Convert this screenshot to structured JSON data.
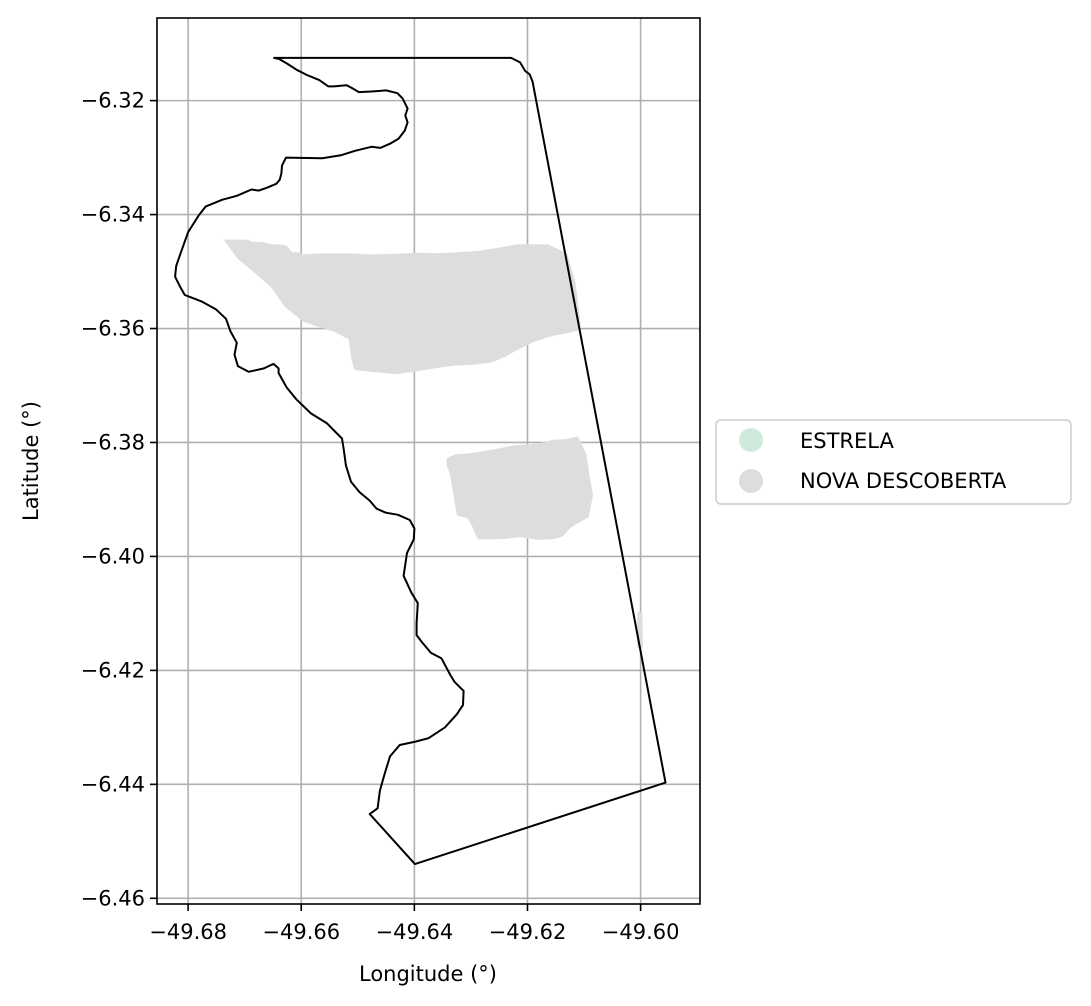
{
  "chart_data": {
    "type": "map",
    "xlabel": "Longitude (°)",
    "ylabel": "Latitude (°)",
    "xlim": [
      -49.6855,
      -49.5895
    ],
    "ylim": [
      -6.461,
      -6.3055
    ],
    "grid": true,
    "x_ticks": [
      -49.68,
      -49.66,
      -49.64,
      -49.62,
      -49.6
    ],
    "y_ticks": [
      -6.32,
      -6.34,
      -6.36,
      -6.38,
      -6.4,
      -6.42,
      -6.44,
      -6.46
    ],
    "x_tick_labels": [
      "−49.68",
      "−49.66",
      "−49.64",
      "−49.62",
      "−49.60"
    ],
    "y_tick_labels": [
      "−6.32",
      "−6.34",
      "−6.36",
      "−6.38",
      "−6.40",
      "−6.42",
      "−6.44",
      "−6.46"
    ],
    "legend": {
      "placement": "right-center",
      "entries": [
        {
          "label": "ESTRELA",
          "color": "#cfeadd"
        },
        {
          "label": "NOVA DESCOBERTA",
          "color": "#dddddd"
        }
      ]
    },
    "boundary": [
      [
        -49.6229,
        -6.3125
      ],
      [
        -49.6213,
        -6.3133
      ],
      [
        -49.6204,
        -6.3148
      ],
      [
        -49.6196,
        -6.3154
      ],
      [
        -49.6191,
        -6.3167
      ],
      [
        -49.5956,
        -6.4397
      ],
      [
        -49.6399,
        -6.454
      ],
      [
        -49.6479,
        -6.4452
      ],
      [
        -49.6465,
        -6.4442
      ],
      [
        -49.6461,
        -6.4411
      ],
      [
        -49.6453,
        -6.4383
      ],
      [
        -49.6443,
        -6.4351
      ],
      [
        -49.6426,
        -6.4331
      ],
      [
        -49.6398,
        -6.4325
      ],
      [
        -49.6375,
        -6.4319
      ],
      [
        -49.6346,
        -6.43
      ],
      [
        -49.6325,
        -6.4277
      ],
      [
        -49.6314,
        -6.4261
      ],
      [
        -49.6313,
        -6.4236
      ],
      [
        -49.6329,
        -6.422
      ],
      [
        -49.6336,
        -6.4209
      ],
      [
        -49.6352,
        -6.4179
      ],
      [
        -49.6371,
        -6.4169
      ],
      [
        -49.6387,
        -6.415
      ],
      [
        -49.6396,
        -6.4138
      ],
      [
        -49.6396,
        -6.4117
      ],
      [
        -49.6394,
        -6.4082
      ],
      [
        -49.6405,
        -6.4064
      ],
      [
        -49.6419,
        -6.4034
      ],
      [
        -49.6413,
        -6.3994
      ],
      [
        -49.6401,
        -6.397
      ],
      [
        -49.64,
        -6.3951
      ],
      [
        -49.6408,
        -6.3936
      ],
      [
        -49.6429,
        -6.3927
      ],
      [
        -49.6451,
        -6.3923
      ],
      [
        -49.6467,
        -6.3916
      ],
      [
        -49.6479,
        -6.3902
      ],
      [
        -49.6497,
        -6.3887
      ],
      [
        -49.6512,
        -6.3869
      ],
      [
        -49.6521,
        -6.384
      ],
      [
        -49.6525,
        -6.3812
      ],
      [
        -49.6528,
        -6.3793
      ],
      [
        -49.6542,
        -6.3779
      ],
      [
        -49.6555,
        -6.3766
      ],
      [
        -49.6583,
        -6.3749
      ],
      [
        -49.6608,
        -6.3725
      ],
      [
        -49.6626,
        -6.3703
      ],
      [
        -49.664,
        -6.3678
      ],
      [
        -49.664,
        -6.367
      ],
      [
        -49.6649,
        -6.3662
      ],
      [
        -49.6666,
        -6.367
      ],
      [
        -49.6693,
        -6.3676
      ],
      [
        -49.6712,
        -6.3666
      ],
      [
        -49.6718,
        -6.3646
      ],
      [
        -49.6714,
        -6.3625
      ],
      [
        -49.6725,
        -6.3605
      ],
      [
        -49.6733,
        -6.3583
      ],
      [
        -49.6751,
        -6.3566
      ],
      [
        -49.6775,
        -6.3553
      ],
      [
        -49.6806,
        -6.3541
      ],
      [
        -49.6814,
        -6.3527
      ],
      [
        -49.6823,
        -6.3509
      ],
      [
        -49.6821,
        -6.349
      ],
      [
        -49.6813,
        -6.3467
      ],
      [
        -49.68,
        -6.3431
      ],
      [
        -49.6781,
        -6.3401
      ],
      [
        -49.6769,
        -6.3386
      ],
      [
        -49.674,
        -6.3374
      ],
      [
        -49.6714,
        -6.3367
      ],
      [
        -49.6688,
        -6.3356
      ],
      [
        -49.6675,
        -6.3358
      ],
      [
        -49.6661,
        -6.3353
      ],
      [
        -49.6644,
        -6.3346
      ],
      [
        -49.6638,
        -6.3339
      ],
      [
        -49.6635,
        -6.3328
      ],
      [
        -49.6634,
        -6.3314
      ],
      [
        -49.6627,
        -6.33
      ],
      [
        -49.6563,
        -6.3301
      ],
      [
        -49.653,
        -6.3296
      ],
      [
        -49.6505,
        -6.3288
      ],
      [
        -49.6476,
        -6.3281
      ],
      [
        -49.646,
        -6.3283
      ],
      [
        -49.6442,
        -6.3275
      ],
      [
        -49.6428,
        -6.3267
      ],
      [
        -49.6417,
        -6.3253
      ],
      [
        -49.6412,
        -6.3238
      ],
      [
        -49.6416,
        -6.3226
      ],
      [
        -49.6412,
        -6.3214
      ],
      [
        -49.6421,
        -6.3196
      ],
      [
        -49.643,
        -6.3187
      ],
      [
        -49.645,
        -6.3182
      ],
      [
        -49.6476,
        -6.3184
      ],
      [
        -49.6498,
        -6.3185
      ],
      [
        -49.651,
        -6.3178
      ],
      [
        -49.652,
        -6.3173
      ],
      [
        -49.6542,
        -6.3175
      ],
      [
        -49.6552,
        -6.3175
      ],
      [
        -49.6568,
        -6.3164
      ],
      [
        -49.659,
        -6.3155
      ],
      [
        -49.6608,
        -6.3146
      ],
      [
        -49.6625,
        -6.3135
      ],
      [
        -49.6639,
        -6.3127
      ],
      [
        -49.6648,
        -6.3125
      ],
      [
        -49.6229,
        -6.3125
      ]
    ],
    "regions": [
      {
        "name": "NOVA DESCOBERTA",
        "color": "#dddddd",
        "polygon": [
          [
            -49.6737,
            -6.3444
          ],
          [
            -49.6695,
            -6.3444
          ],
          [
            -49.6686,
            -6.3448
          ],
          [
            -49.6669,
            -6.3448
          ],
          [
            -49.6652,
            -6.3452
          ],
          [
            -49.663,
            -6.3453
          ],
          [
            -49.6623,
            -6.3457
          ],
          [
            -49.6621,
            -6.3461
          ],
          [
            -49.6616,
            -6.3466
          ],
          [
            -49.661,
            -6.3466
          ],
          [
            -49.6604,
            -6.3466
          ],
          [
            -49.6598,
            -6.347
          ],
          [
            -49.658,
            -6.3469
          ],
          [
            -49.6557,
            -6.3468
          ],
          [
            -49.6517,
            -6.3468
          ],
          [
            -49.648,
            -6.347
          ],
          [
            -49.6437,
            -6.3469
          ],
          [
            -49.6393,
            -6.3467
          ],
          [
            -49.6359,
            -6.3468
          ],
          [
            -49.6324,
            -6.3466
          ],
          [
            -49.6289,
            -6.3464
          ],
          [
            -49.625,
            -6.3458
          ],
          [
            -49.6218,
            -6.3452
          ],
          [
            -49.6163,
            -6.3452
          ],
          [
            -49.6158,
            -6.3455
          ],
          [
            -49.613,
            -6.3468
          ],
          [
            -49.6115,
            -6.352
          ],
          [
            -49.6107,
            -6.3586
          ],
          [
            -49.6106,
            -6.3602
          ],
          [
            -49.6135,
            -6.3609
          ],
          [
            -49.616,
            -6.3614
          ],
          [
            -49.619,
            -6.3624
          ],
          [
            -49.6222,
            -6.364
          ],
          [
            -49.624,
            -6.365
          ],
          [
            -49.6265,
            -6.366
          ],
          [
            -49.63,
            -6.3664
          ],
          [
            -49.633,
            -6.3665
          ],
          [
            -49.6365,
            -6.367
          ],
          [
            -49.6395,
            -6.3675
          ],
          [
            -49.643,
            -6.368
          ],
          [
            -49.6466,
            -6.3677
          ],
          [
            -49.6506,
            -6.3673
          ],
          [
            -49.6512,
            -6.365
          ],
          [
            -49.6516,
            -6.3619
          ],
          [
            -49.6543,
            -6.3605
          ],
          [
            -49.6567,
            -6.3598
          ],
          [
            -49.6596,
            -6.3588
          ],
          [
            -49.6629,
            -6.3562
          ],
          [
            -49.6653,
            -6.3528
          ],
          [
            -49.6684,
            -6.3501
          ],
          [
            -49.6713,
            -6.3477
          ],
          [
            -49.6737,
            -6.3444
          ]
        ]
      },
      {
        "name": "NOVA DESCOBERTA",
        "color": "#dddddd",
        "polygon": [
          [
            -49.6111,
            -6.3789
          ],
          [
            -49.6132,
            -6.3794
          ],
          [
            -49.6154,
            -6.3795
          ],
          [
            -49.6181,
            -6.3802
          ],
          [
            -49.6223,
            -6.3805
          ],
          [
            -49.6254,
            -6.3811
          ],
          [
            -49.6301,
            -6.3819
          ],
          [
            -49.6328,
            -6.3821
          ],
          [
            -49.6343,
            -6.3828
          ],
          [
            -49.6343,
            -6.384
          ],
          [
            -49.6337,
            -6.3856
          ],
          [
            -49.6332,
            -6.3885
          ],
          [
            -49.6329,
            -6.3904
          ],
          [
            -49.6325,
            -6.3928
          ],
          [
            -49.6306,
            -6.3933
          ],
          [
            -49.6297,
            -6.3949
          ],
          [
            -49.6292,
            -6.3962
          ],
          [
            -49.6287,
            -6.397
          ],
          [
            -49.626,
            -6.397
          ],
          [
            -49.6238,
            -6.3969
          ],
          [
            -49.6213,
            -6.3966
          ],
          [
            -49.6181,
            -6.3971
          ],
          [
            -49.6155,
            -6.397
          ],
          [
            -49.6138,
            -6.3965
          ],
          [
            -49.6123,
            -6.3949
          ],
          [
            -49.6092,
            -6.3931
          ],
          [
            -49.6084,
            -6.3892
          ],
          [
            -49.609,
            -6.386
          ],
          [
            -49.6096,
            -6.382
          ],
          [
            -49.6111,
            -6.3789
          ]
        ]
      },
      {
        "name": "NOVA DESCOBERTA",
        "color": "#dddddd",
        "polygon": [
          [
            -49.6006,
            -6.4097
          ],
          [
            -49.5997,
            -6.4097
          ],
          [
            -49.5996,
            -6.416
          ],
          [
            -49.6006,
            -6.416
          ]
        ]
      }
    ]
  }
}
